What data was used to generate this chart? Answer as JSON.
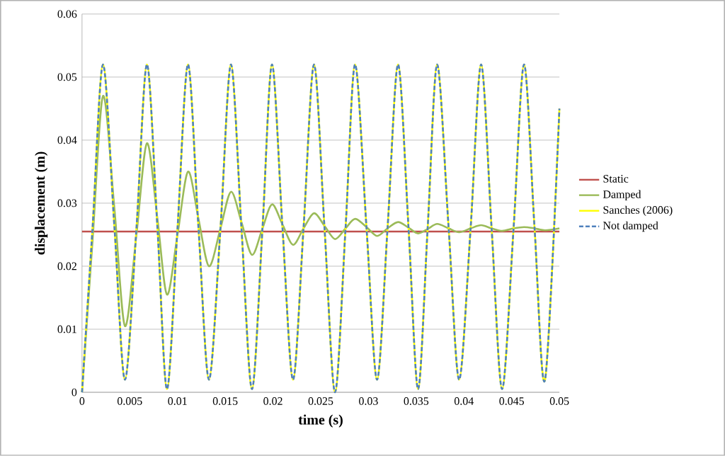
{
  "chart_data": {
    "type": "line",
    "xlabel": "time (s)",
    "ylabel": "displacement (m)",
    "x": [
      0,
      0.0011,
      0.0022,
      0.0034,
      0.0045,
      0.0057,
      0.0068,
      0.0079,
      0.0089,
      0.01,
      0.0111,
      0.0122,
      0.0133,
      0.0145,
      0.0156,
      0.0167,
      0.0178,
      0.0189,
      0.0199,
      0.021,
      0.0221,
      0.0232,
      0.0243,
      0.0254,
      0.0265,
      0.0276,
      0.0286,
      0.0298,
      0.0309,
      0.032,
      0.0331,
      0.0342,
      0.0352,
      0.0362,
      0.0372,
      0.0384,
      0.0395,
      0.0407,
      0.0418,
      0.0429,
      0.044,
      0.0452,
      0.0463,
      0.0474,
      0.0485,
      0.05
    ],
    "series": [
      {
        "name": "Static",
        "color": "#c0504d",
        "x": [
          0,
          0.05
        ],
        "values": [
          0.0255,
          0.0255
        ]
      },
      {
        "name": "Damped",
        "color": "#9bbb59",
        "values": [
          0,
          0.024,
          0.047,
          0.029,
          0.0105,
          0.025,
          0.0395,
          0.0275,
          0.0155,
          0.025,
          0.035,
          0.0275,
          0.02,
          0.026,
          0.0318,
          0.027,
          0.0218,
          0.026,
          0.0298,
          0.0266,
          0.0234,
          0.026,
          0.0284,
          0.0264,
          0.0243,
          0.026,
          0.0275,
          0.0262,
          0.0248,
          0.026,
          0.027,
          0.0261,
          0.0252,
          0.0259,
          0.0267,
          0.026,
          0.0254,
          0.026,
          0.0265,
          0.026,
          0.0256,
          0.026,
          0.0262,
          0.026,
          0.0257,
          0.026
        ]
      },
      {
        "name": "Sanches (2006)",
        "color": "#ffff00",
        "values": [
          0,
          0.026,
          0.052,
          0.026,
          0.002,
          0.026,
          0.052,
          0.026,
          0.0005,
          0.026,
          0.052,
          0.026,
          0.002,
          0.026,
          0.052,
          0.026,
          0.0005,
          0.026,
          0.052,
          0.026,
          0.002,
          0.026,
          0.052,
          0.026,
          0,
          0.026,
          0.052,
          0.026,
          0.002,
          0.026,
          0.052,
          0.026,
          0.0005,
          0.026,
          0.052,
          0.026,
          0.002,
          0.026,
          0.052,
          0.026,
          0.0005,
          0.026,
          0.052,
          0.026,
          0.002,
          0.045
        ]
      },
      {
        "name": "Not damped",
        "color": "#4f81bd",
        "line_style": "dashed",
        "values": [
          0,
          0.026,
          0.052,
          0.026,
          0.002,
          0.026,
          0.052,
          0.026,
          0.0005,
          0.026,
          0.052,
          0.026,
          0.002,
          0.026,
          0.052,
          0.026,
          0.0005,
          0.026,
          0.052,
          0.026,
          0.002,
          0.026,
          0.052,
          0.026,
          0,
          0.026,
          0.052,
          0.026,
          0.002,
          0.026,
          0.052,
          0.026,
          0.0005,
          0.026,
          0.052,
          0.026,
          0.002,
          0.026,
          0.052,
          0.026,
          0.0005,
          0.026,
          0.052,
          0.026,
          0.002,
          0.045
        ]
      }
    ],
    "xlim": [
      0,
      0.05
    ],
    "xticks": [
      0,
      0.005,
      0.01,
      0.015,
      0.02,
      0.025,
      0.03,
      0.035,
      0.04,
      0.045,
      0.05
    ],
    "ylim": [
      0,
      0.06
    ],
    "yticks": [
      0,
      0.01,
      0.02,
      0.03,
      0.04,
      0.05,
      0.06
    ],
    "grid": "y",
    "legend": "right",
    "marker": "none"
  }
}
